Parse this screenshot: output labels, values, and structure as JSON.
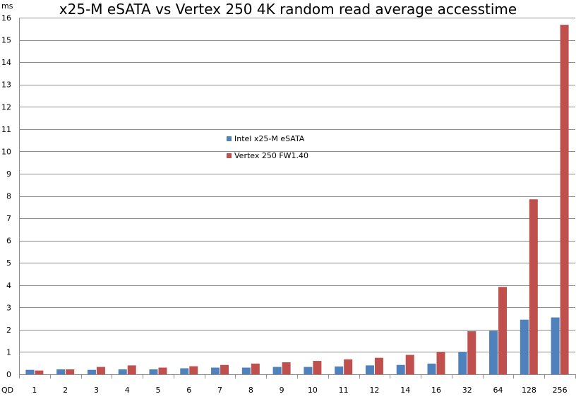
{
  "chart_data": {
    "type": "bar",
    "title": "x25-M eSATA vs Vertex 250 4K random read average accesstime",
    "ylabel": "ms",
    "xlabel": "QD",
    "ylim": [
      0,
      16
    ],
    "yticks": [
      0,
      1,
      2,
      3,
      4,
      5,
      6,
      7,
      8,
      9,
      10,
      11,
      12,
      13,
      14,
      15,
      16
    ],
    "grid": true,
    "legend_placement": "center",
    "categories": [
      "1",
      "2",
      "3",
      "4",
      "5",
      "6",
      "7",
      "8",
      "9",
      "10",
      "11",
      "12",
      "14",
      "16",
      "32",
      "64",
      "128",
      "256"
    ],
    "series": [
      {
        "name": "Intel x25-M eSATA",
        "color": "#4F81BD",
        "values": [
          0.2,
          0.22,
          0.2,
          0.22,
          0.22,
          0.27,
          0.3,
          0.3,
          0.33,
          0.33,
          0.35,
          0.4,
          0.42,
          0.48,
          1.0,
          1.95,
          2.45,
          2.55
        ]
      },
      {
        "name": "Vertex 250 FW1.40",
        "color": "#C0504D",
        "values": [
          0.17,
          0.22,
          0.33,
          0.4,
          0.3,
          0.36,
          0.42,
          0.48,
          0.54,
          0.6,
          0.67,
          0.74,
          0.87,
          1.0,
          1.93,
          3.92,
          7.85,
          15.68
        ]
      }
    ]
  }
}
